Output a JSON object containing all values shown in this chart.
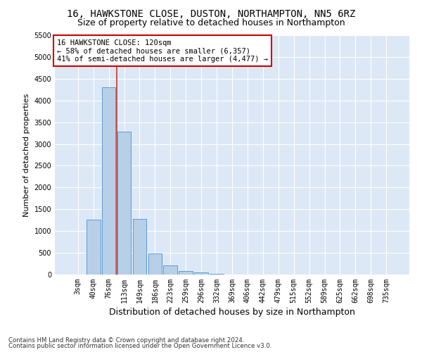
{
  "title1": "16, HAWKSTONE CLOSE, DUSTON, NORTHAMPTON, NN5 6RZ",
  "title2": "Size of property relative to detached houses in Northampton",
  "xlabel": "Distribution of detached houses by size in Northampton",
  "ylabel": "Number of detached properties",
  "footer1": "Contains HM Land Registry data © Crown copyright and database right 2024.",
  "footer2": "Contains public sector information licensed under the Open Government Licence v3.0.",
  "annotation_line1": "16 HAWKSTONE CLOSE: 120sqm",
  "annotation_line2": "← 58% of detached houses are smaller (6,357)",
  "annotation_line3": "41% of semi-detached houses are larger (4,477) →",
  "bar_labels": [
    "3sqm",
    "40sqm",
    "76sqm",
    "113sqm",
    "149sqm",
    "186sqm",
    "223sqm",
    "259sqm",
    "296sqm",
    "332sqm",
    "369sqm",
    "406sqm",
    "442sqm",
    "479sqm",
    "515sqm",
    "552sqm",
    "589sqm",
    "625sqm",
    "662sqm",
    "698sqm",
    "735sqm"
  ],
  "bar_values": [
    0,
    1260,
    4310,
    3280,
    1270,
    480,
    215,
    75,
    55,
    20,
    5,
    0,
    0,
    0,
    0,
    0,
    0,
    0,
    0,
    0,
    0
  ],
  "bar_color": "#b8cfe8",
  "bar_edge_color": "#5b9bd5",
  "vline_color": "#c0392b",
  "ylim": [
    0,
    5500
  ],
  "yticks": [
    0,
    500,
    1000,
    1500,
    2000,
    2500,
    3000,
    3500,
    4000,
    4500,
    5000,
    5500
  ],
  "fig_bg_color": "#ffffff",
  "plot_bg_color": "#dce8f5",
  "title_fontsize": 10,
  "subtitle_fontsize": 9,
  "annotation_box_color": "#cc0000",
  "grid_color": "#ffffff",
  "tick_fontsize": 7,
  "ylabel_fontsize": 8,
  "xlabel_fontsize": 9
}
